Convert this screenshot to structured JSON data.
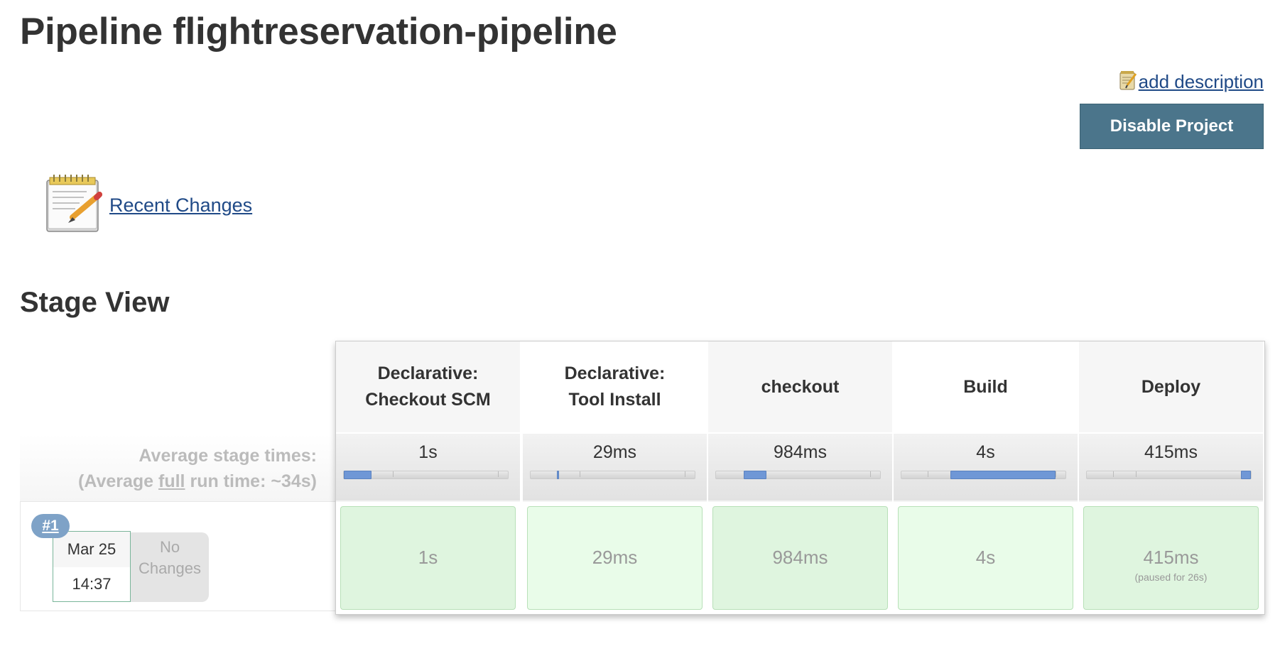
{
  "page": {
    "title": "Pipeline flightreservation-pipeline",
    "add_description": "add description",
    "disable_button": "Disable Project",
    "recent_changes": "Recent Changes",
    "stage_view_title": "Stage View"
  },
  "stage_view": {
    "avg_label_line1": "Average stage times:",
    "avg_label_prefix": "(Average ",
    "avg_label_full": "full",
    "avg_label_suffix": " run time: ~34s)",
    "stages": [
      {
        "name_line1": "Declarative:",
        "name_line2": "Checkout SCM",
        "avg": "1s",
        "run_duration": "1s",
        "paused": ""
      },
      {
        "name_line1": "Declarative:",
        "name_line2": "Tool Install",
        "avg": "29ms",
        "run_duration": "29ms",
        "paused": ""
      },
      {
        "name_line1": "checkout",
        "name_line2": "",
        "avg": "984ms",
        "run_duration": "984ms",
        "paused": ""
      },
      {
        "name_line1": "Build",
        "name_line2": "",
        "avg": "4s",
        "run_duration": "4s",
        "paused": ""
      },
      {
        "name_line1": "Deploy",
        "name_line2": "",
        "avg": "415ms",
        "run_duration": "415ms",
        "paused": "(paused for 26s)"
      }
    ],
    "runs": [
      {
        "number": "#1",
        "date": "Mar 25",
        "time": "14:37",
        "changes": "No Changes"
      }
    ]
  },
  "icons": {
    "edit": "notepad-pencil-icon",
    "recent_changes": "notepad-pencil-icon"
  },
  "colors": {
    "link": "#204a87",
    "button": "#4b758b",
    "success_cell": "#dff5df",
    "badge": "#7ea2c7"
  }
}
